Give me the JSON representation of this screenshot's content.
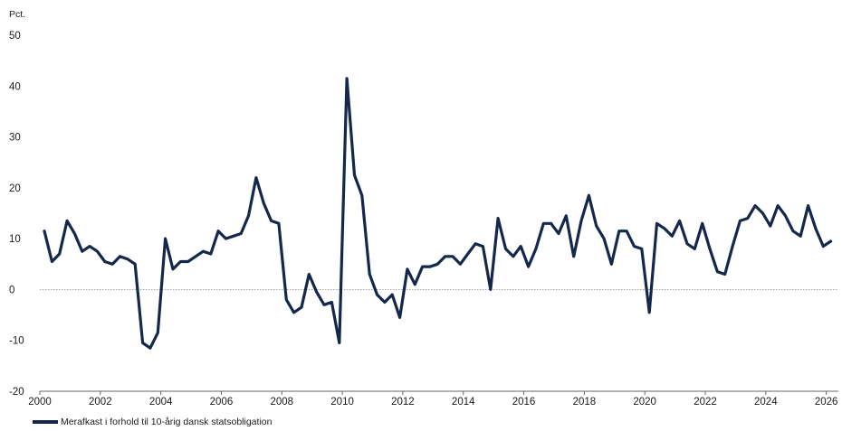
{
  "chart_data": {
    "type": "line",
    "title": "",
    "xlabel": "",
    "ylabel": "Pct.",
    "xlim": [
      2000,
      2026.4
    ],
    "ylim": [
      -20,
      50
    ],
    "x_ticks": [
      "2000",
      "2002",
      "2004",
      "2006",
      "2008",
      "2010",
      "2012",
      "2014",
      "2016",
      "2018",
      "2020",
      "2022",
      "2024",
      "2026"
    ],
    "y_ticks": [
      "50",
      "40",
      "30",
      "20",
      "10",
      "0",
      "-10",
      "-20"
    ],
    "grid": false,
    "zero_line": true,
    "legend_position": "bottom-left",
    "colors": {
      "series": "#14284b",
      "zero_line": "#9a9a9a",
      "axis": "#666666"
    },
    "series": [
      {
        "name": "Merafkast i forhold til 10-årig dansk statsobligation",
        "x": [
          2000.15,
          2000.4,
          2000.65,
          2000.9,
          2001.15,
          2001.4,
          2001.65,
          2001.9,
          2002.15,
          2002.4,
          2002.65,
          2002.9,
          2003.15,
          2003.4,
          2003.65,
          2003.9,
          2004.15,
          2004.4,
          2004.65,
          2004.9,
          2005.15,
          2005.4,
          2005.65,
          2005.9,
          2006.15,
          2006.4,
          2006.65,
          2006.9,
          2007.15,
          2007.4,
          2007.65,
          2007.9,
          2008.15,
          2008.4,
          2008.65,
          2008.9,
          2009.15,
          2009.4,
          2009.65,
          2009.9,
          2010.15,
          2010.4,
          2010.65,
          2010.9,
          2011.15,
          2011.4,
          2011.65,
          2011.9,
          2012.15,
          2012.4,
          2012.65,
          2012.9,
          2013.15,
          2013.4,
          2013.65,
          2013.9,
          2014.15,
          2014.4,
          2014.65,
          2014.9,
          2015.15,
          2015.4,
          2015.65,
          2015.9,
          2016.15,
          2016.4,
          2016.65,
          2016.9,
          2017.15,
          2017.4,
          2017.65,
          2017.9,
          2018.15,
          2018.4,
          2018.65,
          2018.9,
          2019.15,
          2019.4,
          2019.65,
          2019.9,
          2020.15,
          2020.4,
          2020.65,
          2020.9,
          2021.15,
          2021.4,
          2021.65,
          2021.9,
          2022.15,
          2022.4,
          2022.65,
          2022.9,
          2023.15,
          2023.4,
          2023.65,
          2023.9,
          2024.15,
          2024.4,
          2024.65,
          2024.9,
          2025.15,
          2025.4,
          2025.65,
          2025.9,
          2026.15
        ],
        "values": [
          11.5,
          5.5,
          7,
          13.5,
          11,
          7.5,
          8.5,
          7.5,
          5.5,
          5,
          6.5,
          6,
          5,
          -10.5,
          -11.5,
          -8.5,
          10,
          4,
          5.5,
          5.5,
          6.5,
          7.5,
          7,
          11.5,
          10,
          10.5,
          11,
          14.5,
          22,
          17,
          13.5,
          13,
          -2,
          -4.5,
          -3.5,
          3,
          -0.5,
          -3,
          -2.5,
          -10.5,
          41.5,
          22.5,
          18.5,
          3,
          -1,
          -2.5,
          -1,
          -5.5,
          4,
          1,
          4.5,
          4.5,
          5,
          6.5,
          6.5,
          5,
          7,
          9,
          8.5,
          0,
          14,
          8,
          6.5,
          8.5,
          4.5,
          8,
          13,
          13,
          11,
          14.5,
          6.5,
          13.5,
          18.5,
          12.5,
          10,
          5,
          11.5,
          11.5,
          8.5,
          8,
          -4.5,
          13,
          12,
          10.5,
          13.5,
          9,
          8,
          13,
          8,
          3.5,
          3,
          8.5,
          13.5,
          14,
          16.5,
          15,
          12.5,
          16.5,
          14.5,
          11.5,
          10.5,
          16.5,
          12,
          8.5,
          9.5
        ]
      }
    ]
  }
}
